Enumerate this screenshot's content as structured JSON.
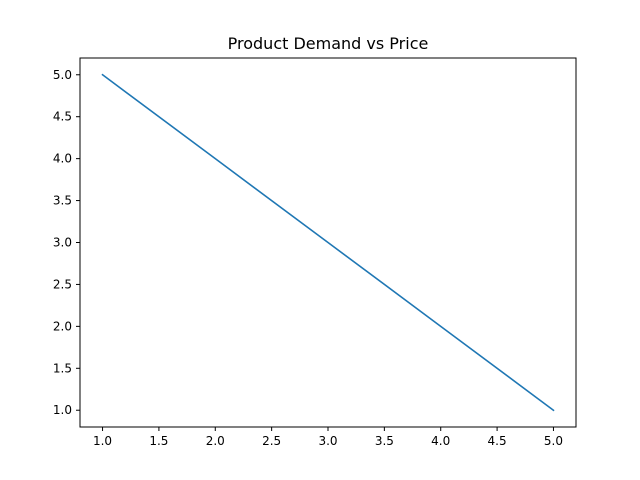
{
  "chart_data": {
    "type": "line",
    "title": "Product Demand vs Price",
    "xlabel": "",
    "ylabel": "",
    "x": [
      1.0,
      2.0,
      3.0,
      4.0,
      5.0
    ],
    "series": [
      {
        "values": [
          5.0,
          4.0,
          3.0,
          2.0,
          1.0
        ],
        "color": "#1f77b4"
      }
    ],
    "xlim": [
      0.8,
      5.2
    ],
    "ylim": [
      0.8,
      5.2
    ],
    "xticks": [
      1.0,
      1.5,
      2.0,
      2.5,
      3.0,
      3.5,
      4.0,
      4.5,
      5.0
    ],
    "yticks": [
      1.0,
      1.5,
      2.0,
      2.5,
      3.0,
      3.5,
      4.0,
      4.5,
      5.0
    ],
    "grid": false,
    "legend": "none"
  }
}
